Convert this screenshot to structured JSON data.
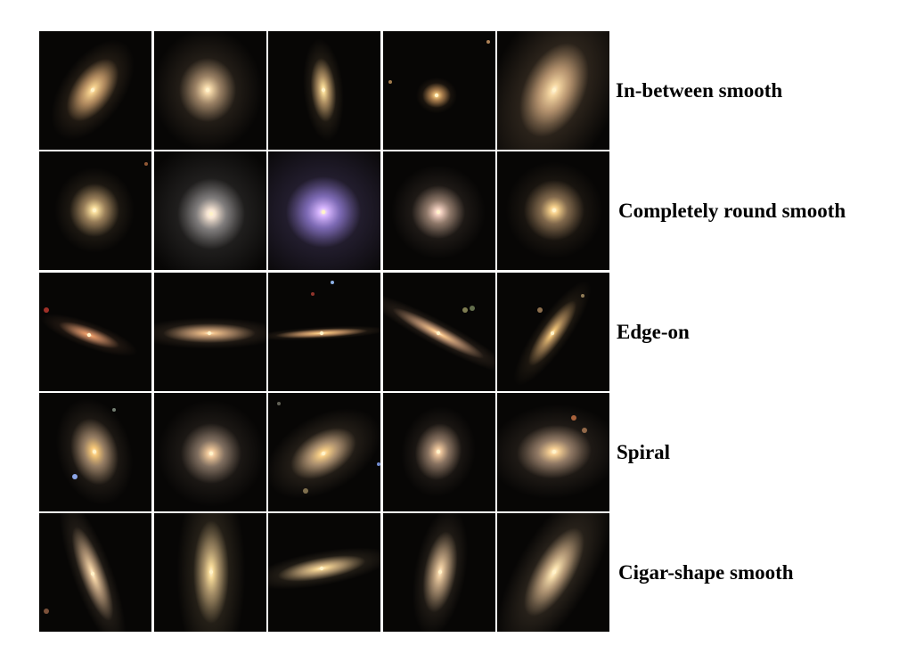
{
  "figure": {
    "rows": [
      {
        "label": "In-between smooth"
      },
      {
        "label": "Completely round smooth"
      },
      {
        "label": "Edge-on"
      },
      {
        "label": "Spiral"
      },
      {
        "label": "Cigar-shape smooth"
      }
    ]
  }
}
